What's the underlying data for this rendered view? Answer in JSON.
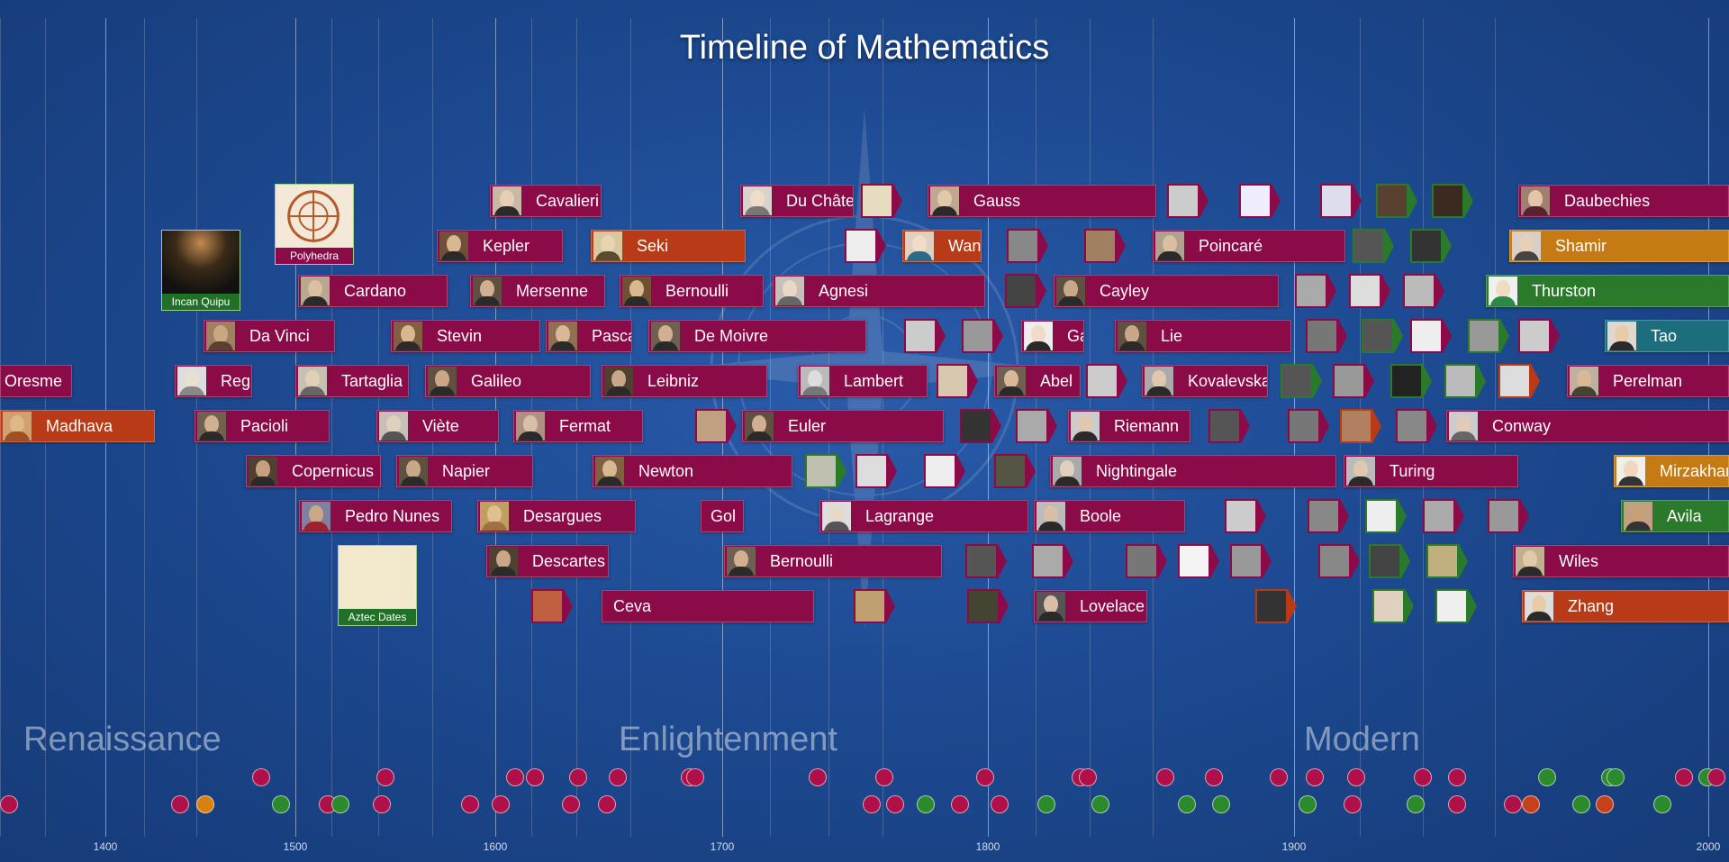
{
  "title": "Timeline of Mathematics",
  "colors": {
    "maroon": "#8b0a48",
    "orange": "#b93a17",
    "gold": "#c57a14",
    "green": "#2b7a2b",
    "teal": "#1d6e7c"
  },
  "axis": {
    "ticks": [
      "1400",
      "1500",
      "1600",
      "1700",
      "1800",
      "1900",
      "2000"
    ]
  },
  "eras": [
    "Renaissance",
    "Enlightenment",
    "Modern"
  ],
  "thumbnails": {
    "polyhedra": "Polyhedra",
    "quipu": "Incan Quipu",
    "aztec": "Aztec Dates"
  },
  "people": {
    "cavalieri": "Cavalieri",
    "du_chatelet": "Du Châtele",
    "gauss": "Gauss",
    "daubechies": "Daubechies",
    "kepler": "Kepler",
    "seki": "Seki",
    "wang": "Wang",
    "poincare": "Poincaré",
    "shamir": "Shamir",
    "cardano": "Cardano",
    "mersenne": "Mersenne",
    "bernoulli1": "Bernoulli",
    "agnesi": "Agnesi",
    "cayley": "Cayley",
    "thurston": "Thurston",
    "davinci": "Da Vinci",
    "stevin": "Stevin",
    "pascal": "Pascal",
    "demoivre": "De Moivre",
    "gal": "Gal",
    "lie": "Lie",
    "tao": "Tao",
    "oresme": "Oresme",
    "regio": "Regic",
    "tartaglia": "Tartaglia",
    "galileo": "Galileo",
    "leibniz": "Leibniz",
    "lambert": "Lambert",
    "abel": "Abel",
    "kovalevskay": "Kovalevskay",
    "perelman": "Perelman",
    "madhava": "Madhava",
    "pacioli": "Pacioli",
    "viete": "Viète",
    "fermat": "Fermat",
    "euler": "Euler",
    "riemann": "Riemann",
    "conway": "Conway",
    "copernicus": "Copernicus",
    "napier": "Napier",
    "newton": "Newton",
    "nightingale": "Nightingale",
    "turing": "Turing",
    "mirzakhani": "Mirzakhani",
    "nunes": "Pedro Nunes",
    "desargues": "Desargues",
    "gol": "Gol",
    "lagrange": "Lagrange",
    "boole": "Boole",
    "avila": "Avila",
    "descartes": "Descartes",
    "bernoulli2": "Bernoulli",
    "wiles": "Wiles",
    "ceva": "Ceva",
    "lovelace": "Lovelace",
    "zhang": "Zhang"
  }
}
